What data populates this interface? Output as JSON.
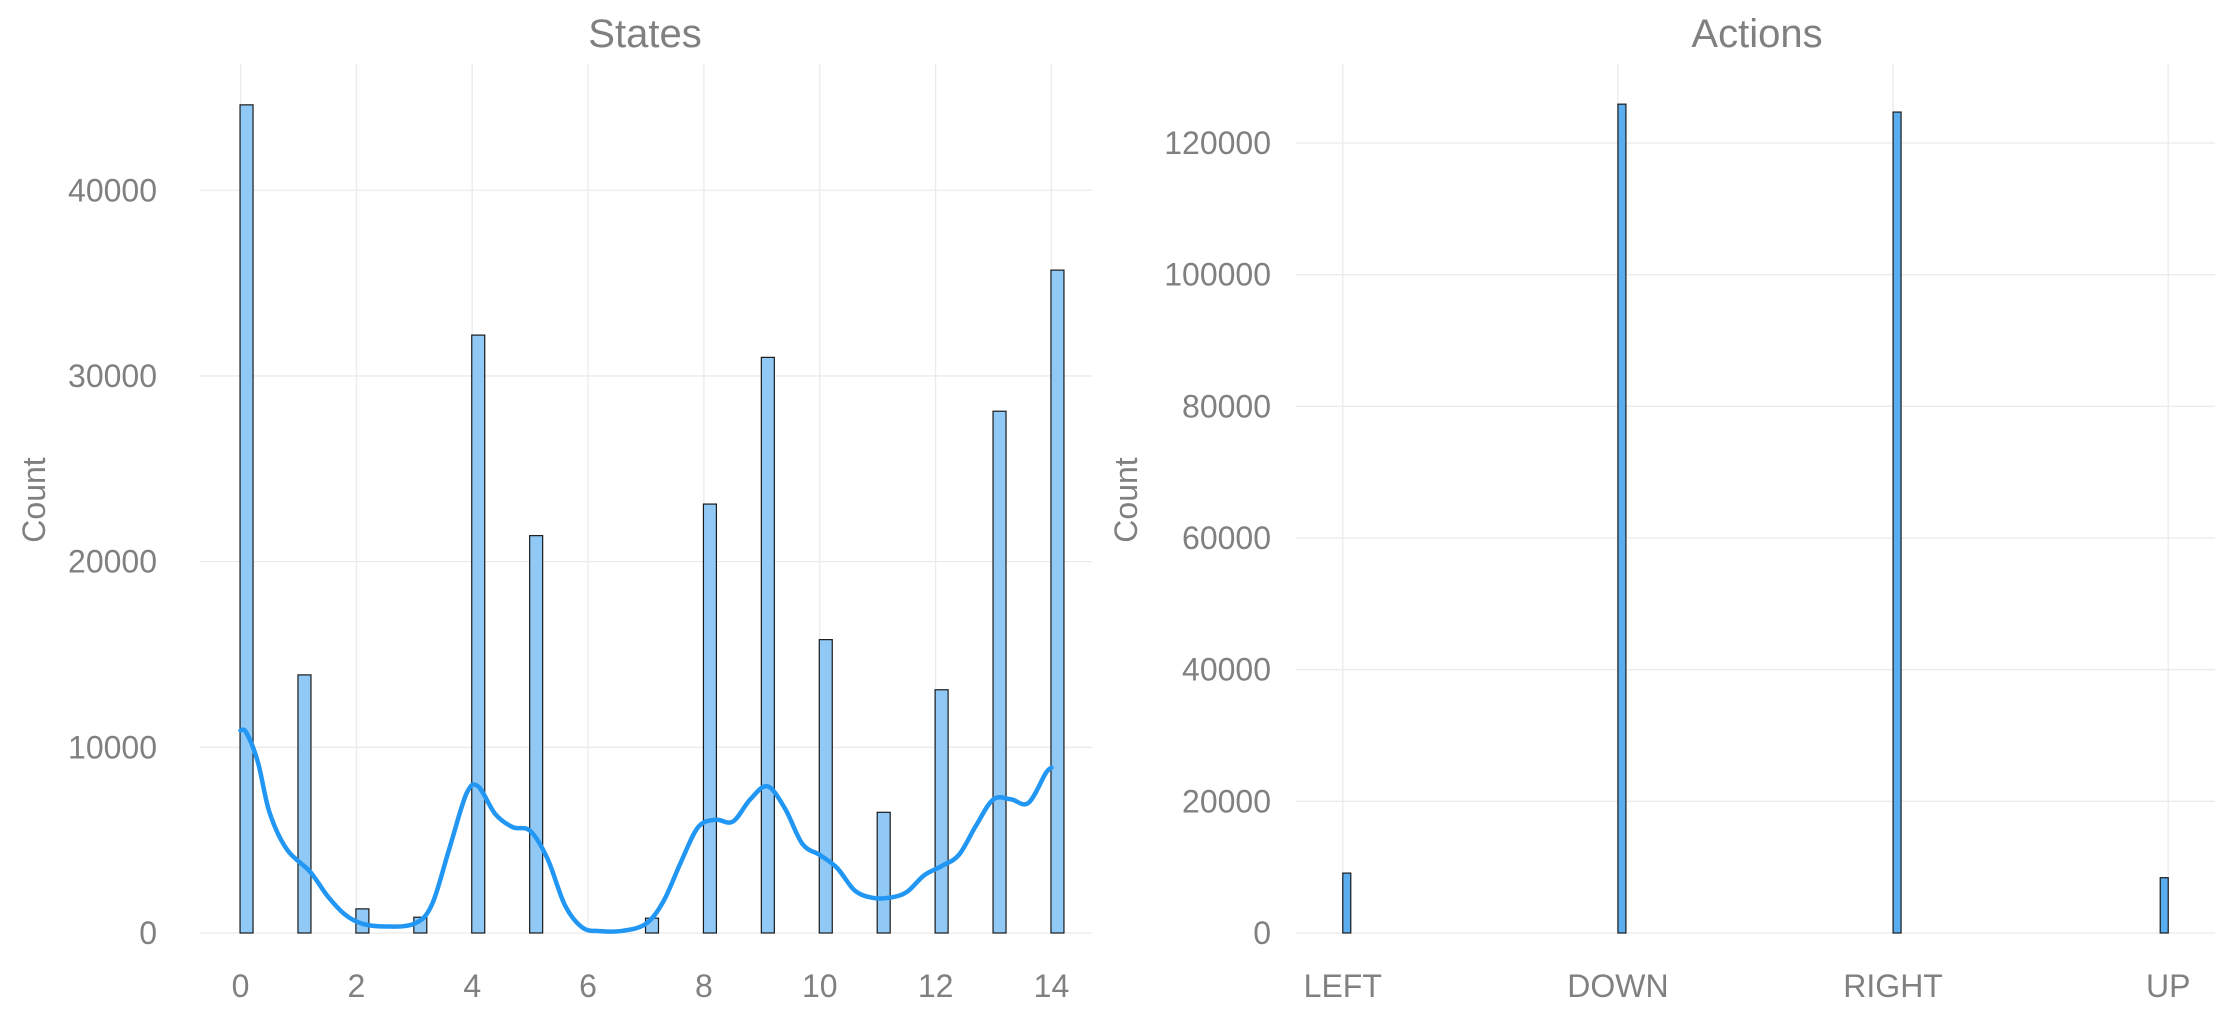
{
  "chart_data": [
    {
      "type": "bar",
      "title": "States",
      "xlabel": "",
      "ylabel": "Count",
      "xlim": [
        -0.7,
        14.7
      ],
      "ylim": [
        0,
        46800
      ],
      "grid": true,
      "bar_color": "#90c9f5",
      "kde_color": "#2196f3",
      "x_ticks": [
        0,
        2,
        4,
        6,
        8,
        10,
        12,
        14
      ],
      "y_ticks": [
        0,
        10000,
        20000,
        30000,
        40000
      ],
      "bars": [
        {
          "x": 0,
          "value": 44600
        },
        {
          "x": 1,
          "value": 13900
        },
        {
          "x": 2,
          "value": 1300
        },
        {
          "x": 3,
          "value": 850
        },
        {
          "x": 4,
          "value": 32200
        },
        {
          "x": 5,
          "value": 21400
        },
        {
          "x": 7,
          "value": 800
        },
        {
          "x": 8,
          "value": 23100
        },
        {
          "x": 9,
          "value": 31000
        },
        {
          "x": 10,
          "value": 15800
        },
        {
          "x": 11,
          "value": 6500
        },
        {
          "x": 12,
          "value": 13100
        },
        {
          "x": 13,
          "value": 28100
        },
        {
          "x": 14,
          "value": 35700
        }
      ],
      "kde": {
        "x": [
          0,
          0.1,
          0.3,
          0.5,
          0.8,
          1.2,
          1.5,
          1.8,
          2.1,
          2.5,
          3.0,
          3.3,
          3.6,
          3.9,
          4.1,
          4.4,
          4.7,
          5.0,
          5.3,
          5.6,
          5.9,
          6.2,
          6.6,
          7.0,
          7.3,
          7.6,
          7.9,
          8.2,
          8.5,
          8.8,
          9.1,
          9.4,
          9.7,
          10.0,
          10.3,
          10.6,
          10.9,
          11.2,
          11.5,
          11.8,
          12.1,
          12.4,
          12.7,
          13.0,
          13.3,
          13.6,
          13.9,
          14.0
        ],
        "y": [
          10900,
          10800,
          9200,
          6500,
          4500,
          3300,
          2000,
          1000,
          500,
          350,
          500,
          1500,
          4500,
          7500,
          7900,
          6400,
          5700,
          5500,
          4000,
          1500,
          300,
          100,
          120,
          500,
          1700,
          3800,
          5700,
          6100,
          6000,
          7200,
          7900,
          6700,
          4800,
          4200,
          3500,
          2300,
          1900,
          1900,
          2200,
          3100,
          3600,
          4200,
          5800,
          7200,
          7200,
          7000,
          8600,
          8900
        ]
      }
    },
    {
      "type": "bar",
      "title": "Actions",
      "xlabel": "",
      "ylabel": "Count",
      "xlim": [
        -0.17,
        3.17
      ],
      "ylim": [
        0,
        132000
      ],
      "grid": true,
      "bar_color": "#5aaef0",
      "categories": [
        "LEFT",
        "DOWN",
        "RIGHT",
        "UP"
      ],
      "y_ticks": [
        0,
        20000,
        40000,
        60000,
        80000,
        100000,
        120000
      ],
      "bars": [
        {
          "x": 0,
          "value": 9100
        },
        {
          "x": 1,
          "value": 125900
        },
        {
          "x": 2,
          "value": 124700
        },
        {
          "x": 3,
          "value": 8400
        }
      ]
    }
  ]
}
